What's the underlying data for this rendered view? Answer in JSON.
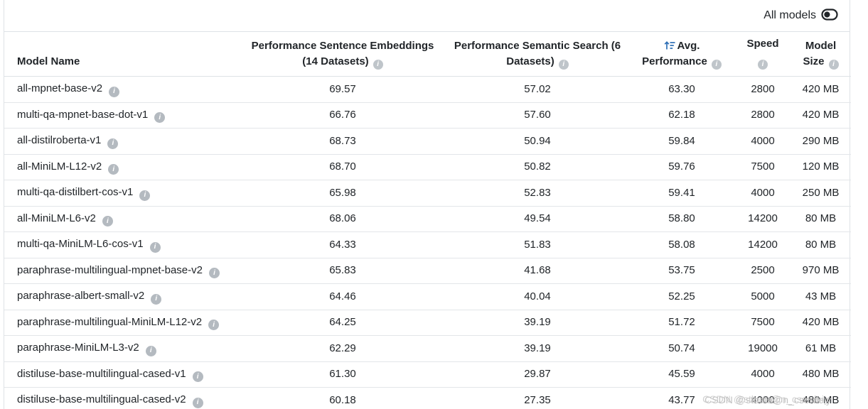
{
  "topbar": {
    "toggle_label": "All models"
  },
  "table": {
    "headers": {
      "model_name": "Model Name",
      "perf_embeddings": "Performance Sentence Embeddings (14 Datasets)",
      "perf_search": "Performance Semantic Search (6 Datasets)",
      "avg": "Avg. Performance",
      "speed": "Speed",
      "size": "Model Size"
    },
    "rows": [
      {
        "name": "all-mpnet-base-v2",
        "perf_embeddings": "69.57",
        "perf_search": "57.02",
        "avg": "63.30",
        "speed": "2800",
        "size": "420 MB"
      },
      {
        "name": "multi-qa-mpnet-base-dot-v1",
        "perf_embeddings": "66.76",
        "perf_search": "57.60",
        "avg": "62.18",
        "speed": "2800",
        "size": "420 MB"
      },
      {
        "name": "all-distilroberta-v1",
        "perf_embeddings": "68.73",
        "perf_search": "50.94",
        "avg": "59.84",
        "speed": "4000",
        "size": "290 MB"
      },
      {
        "name": "all-MiniLM-L12-v2",
        "perf_embeddings": "68.70",
        "perf_search": "50.82",
        "avg": "59.76",
        "speed": "7500",
        "size": "120 MB"
      },
      {
        "name": "multi-qa-distilbert-cos-v1",
        "perf_embeddings": "65.98",
        "perf_search": "52.83",
        "avg": "59.41",
        "speed": "4000",
        "size": "250 MB"
      },
      {
        "name": "all-MiniLM-L6-v2",
        "perf_embeddings": "68.06",
        "perf_search": "49.54",
        "avg": "58.80",
        "speed": "14200",
        "size": "80 MB"
      },
      {
        "name": "multi-qa-MiniLM-L6-cos-v1",
        "perf_embeddings": "64.33",
        "perf_search": "51.83",
        "avg": "58.08",
        "speed": "14200",
        "size": "80 MB"
      },
      {
        "name": "paraphrase-multilingual-mpnet-base-v2",
        "perf_embeddings": "65.83",
        "perf_search": "41.68",
        "avg": "53.75",
        "speed": "2500",
        "size": "970 MB"
      },
      {
        "name": "paraphrase-albert-small-v2",
        "perf_embeddings": "64.46",
        "perf_search": "40.04",
        "avg": "52.25",
        "speed": "5000",
        "size": "43 MB"
      },
      {
        "name": "paraphrase-multilingual-MiniLM-L12-v2",
        "perf_embeddings": "64.25",
        "perf_search": "39.19",
        "avg": "51.72",
        "speed": "7500",
        "size": "420 MB"
      },
      {
        "name": "paraphrase-MiniLM-L3-v2",
        "perf_embeddings": "62.29",
        "perf_search": "39.19",
        "avg": "50.74",
        "speed": "19000",
        "size": "61 MB"
      },
      {
        "name": "distiluse-base-multilingual-cased-v1",
        "perf_embeddings": "61.30",
        "perf_search": "29.87",
        "avg": "45.59",
        "speed": "4000",
        "size": "480 MB"
      },
      {
        "name": "distiluse-base-multilingual-cased-v2",
        "perf_embeddings": "60.18",
        "perf_search": "27.35",
        "avg": "43.77",
        "speed": "4000",
        "size": "480 MB"
      }
    ]
  },
  "watermark": {
    "text": "CSDN @stbata@n_cserdeiy"
  },
  "colors": {
    "text": "#212529",
    "border": "#dee2e6",
    "icon_gray": "#b4bac0",
    "sort_blue": "#2d6eb5",
    "watermark_gray": "#c3c3c3"
  }
}
